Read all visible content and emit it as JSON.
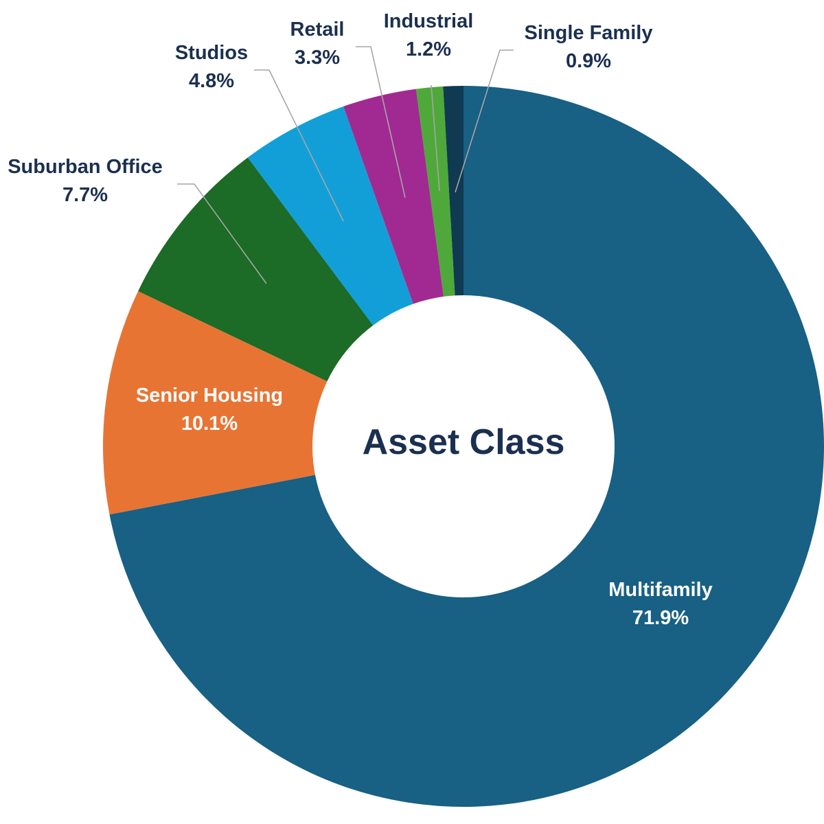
{
  "chart_data": {
    "type": "pie",
    "variant": "donut",
    "center_title": "Asset Class",
    "slices": [
      {
        "label": "Multifamily",
        "value_text": "71.9%",
        "value": 71.9,
        "color": "#186084"
      },
      {
        "label": "Senior Housing",
        "value_text": "10.1%",
        "value": 10.1,
        "color": "#E87434"
      },
      {
        "label": "Suburban Office",
        "value_text": "7.7%",
        "value": 7.7,
        "color": "#1C6B26"
      },
      {
        "label": "Studios",
        "value_text": "4.8%",
        "value": 4.8,
        "color": "#129FD8"
      },
      {
        "label": "Retail",
        "value_text": "3.3%",
        "value": 3.3,
        "color": "#A02A91"
      },
      {
        "label": "Industrial",
        "value_text": "1.2%",
        "value": 1.2,
        "color": "#4FA93A"
      },
      {
        "label": "Single Family",
        "value_text": "0.9%",
        "value": 0.9,
        "color": "#103A52"
      }
    ],
    "label_text_color": "#1B3050",
    "inside_label_color": "#FFFFFF",
    "leader_line_color": "#A6A6A6",
    "legend": "none"
  }
}
